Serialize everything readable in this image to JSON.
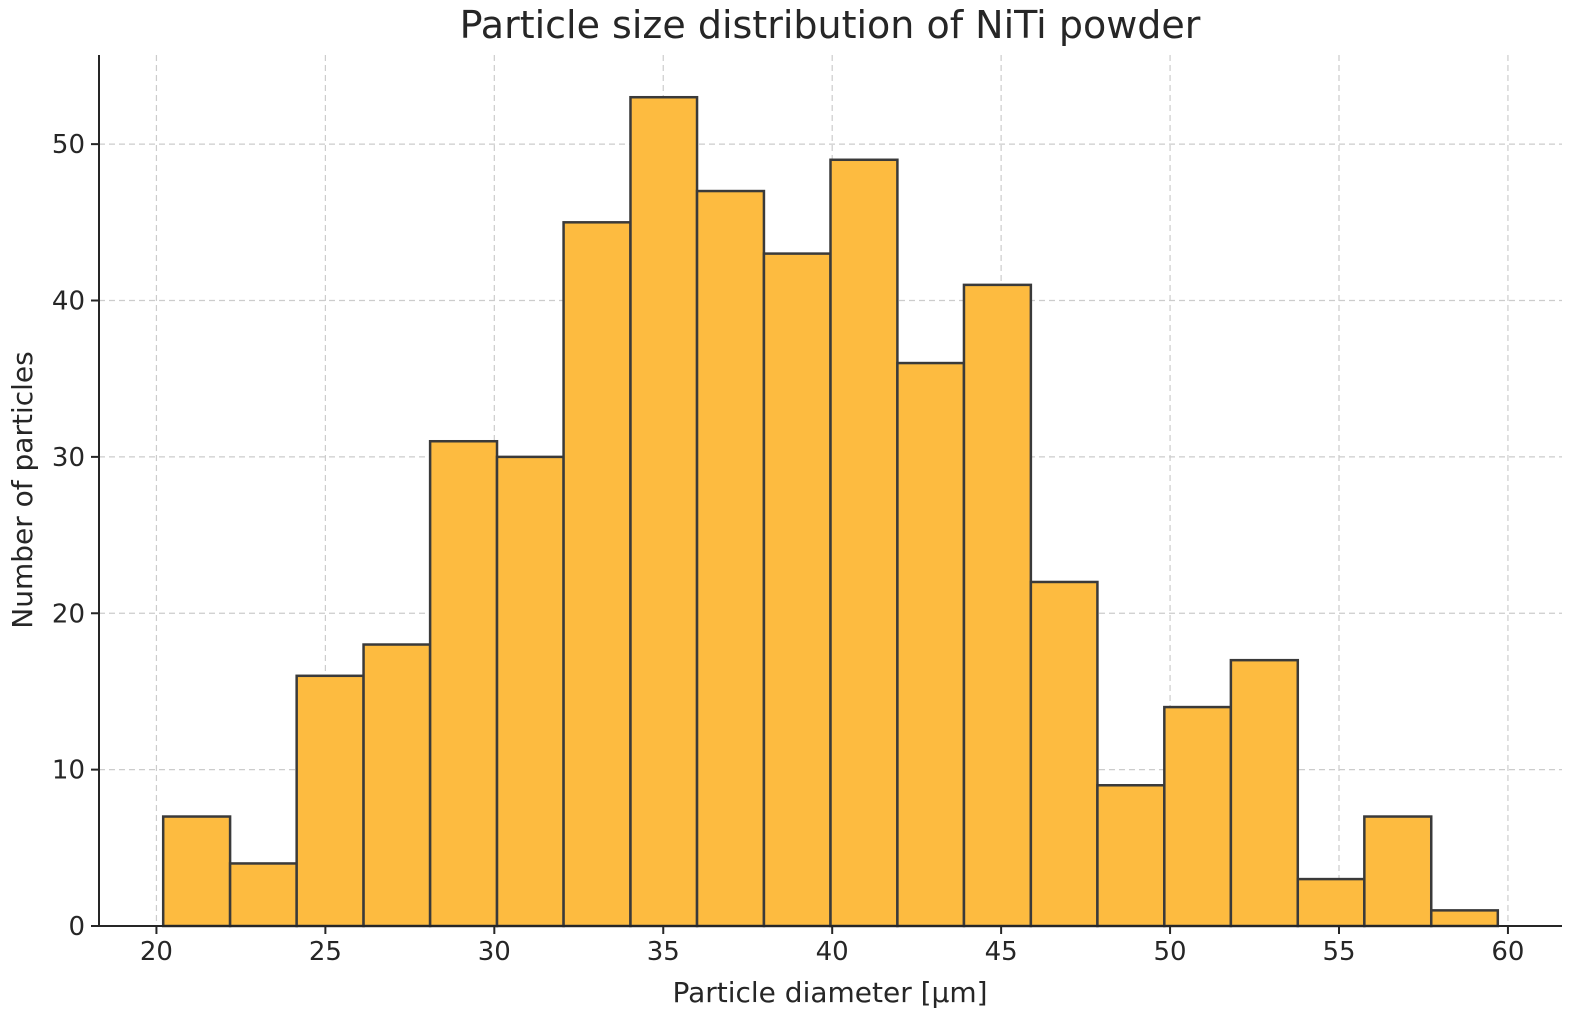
{
  "chart_data": {
    "type": "bar",
    "title": "Particle size distribution of NiTi powder",
    "xlabel": "Particle diameter [μm]",
    "ylabel": "Number of particles",
    "bar_color": "#fdbb40",
    "edge_color": "#3a3a3a",
    "grid": true,
    "xlim": [
      18.3,
      61.6
    ],
    "ylim": [
      0,
      55.7
    ],
    "x_ticks": [
      20,
      25,
      30,
      35,
      40,
      45,
      50,
      55,
      60
    ],
    "y_ticks": [
      0,
      10,
      20,
      30,
      40,
      50
    ],
    "bin_edges": [
      20.2,
      22.18,
      24.15,
      26.13,
      28.1,
      30.08,
      32.05,
      34.03,
      36.0,
      37.98,
      39.95,
      41.93,
      43.9,
      45.88,
      47.85,
      49.83,
      51.8,
      53.78,
      55.75,
      57.73,
      59.7
    ],
    "values": [
      7,
      4,
      16,
      18,
      31,
      30,
      45,
      53,
      47,
      43,
      49,
      36,
      41,
      22,
      9,
      14,
      17,
      3,
      7,
      1
    ]
  }
}
